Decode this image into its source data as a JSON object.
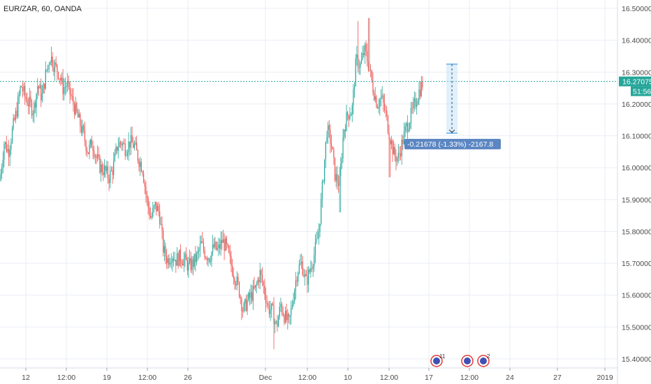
{
  "chart_data": {
    "type": "candlestick",
    "title": "EUR/ZAR, 60, OANDA",
    "ylim": [
      15.37,
      16.52
    ],
    "y_ticks": [
      "16.50000",
      "16.40000",
      "16.30000",
      "16.20000",
      "16.10000",
      "16.00000",
      "15.90000",
      "15.80000",
      "15.70000",
      "15.60000",
      "15.50000",
      "15.40000"
    ],
    "x_ticks": [
      "12",
      "12:00",
      "19",
      "12:00",
      "26",
      "Dec",
      "12:00",
      "10",
      "12:00",
      "17",
      "12:00",
      "24",
      "27",
      "2019"
    ],
    "last_price": "16.27075",
    "countdown": "51:56",
    "measure_label": "-0.21678 (-1.33%) -2167.8",
    "measure_from": 16.325,
    "measure_to": 16.108,
    "event_badges": [
      "11",
      "",
      "2"
    ],
    "path": [
      [
        0,
        15.96
      ],
      [
        6,
        16.08
      ],
      [
        12,
        16.05
      ],
      [
        18,
        16.12
      ],
      [
        24,
        16.18
      ],
      [
        30,
        16.26
      ],
      [
        36,
        16.22
      ],
      [
        42,
        16.2
      ],
      [
        48,
        16.18
      ],
      [
        54,
        16.26
      ],
      [
        60,
        16.22
      ],
      [
        66,
        16.3
      ],
      [
        72,
        16.35
      ],
      [
        78,
        16.32
      ],
      [
        84,
        16.3
      ],
      [
        90,
        16.25
      ],
      [
        96,
        16.26
      ],
      [
        102,
        16.22
      ],
      [
        108,
        16.18
      ],
      [
        114,
        16.14
      ],
      [
        120,
        16.1
      ],
      [
        126,
        16.05
      ],
      [
        132,
        16.08
      ],
      [
        138,
        16.03
      ],
      [
        144,
        16.0
      ],
      [
        150,
        15.99
      ],
      [
        156,
        15.97
      ],
      [
        162,
        16.0
      ],
      [
        168,
        16.07
      ],
      [
        174,
        16.08
      ],
      [
        180,
        16.06
      ],
      [
        186,
        16.08
      ],
      [
        192,
        16.07
      ],
      [
        198,
        16.03
      ],
      [
        204,
        16.0
      ],
      [
        210,
        15.9
      ],
      [
        216,
        15.84
      ],
      [
        222,
        15.88
      ],
      [
        228,
        15.86
      ],
      [
        234,
        15.74
      ],
      [
        240,
        15.71
      ],
      [
        246,
        15.73
      ],
      [
        252,
        15.71
      ],
      [
        258,
        15.72
      ],
      [
        264,
        15.71
      ],
      [
        270,
        15.69
      ],
      [
        276,
        15.7
      ],
      [
        282,
        15.72
      ],
      [
        288,
        15.76
      ],
      [
        294,
        15.73
      ],
      [
        300,
        15.72
      ],
      [
        306,
        15.75
      ],
      [
        312,
        15.74
      ],
      [
        318,
        15.77
      ],
      [
        324,
        15.75
      ],
      [
        330,
        15.7
      ],
      [
        336,
        15.66
      ],
      [
        342,
        15.62
      ],
      [
        348,
        15.55
      ],
      [
        354,
        15.58
      ],
      [
        360,
        15.6
      ],
      [
        366,
        15.62
      ],
      [
        372,
        15.67
      ],
      [
        378,
        15.62
      ],
      [
        384,
        15.56
      ],
      [
        390,
        15.55
      ],
      [
        396,
        15.5
      ],
      [
        402,
        15.57
      ],
      [
        408,
        15.53
      ],
      [
        414,
        15.51
      ],
      [
        420,
        15.6
      ],
      [
        426,
        15.68
      ],
      [
        432,
        15.7
      ],
      [
        438,
        15.64
      ],
      [
        444,
        15.68
      ],
      [
        450,
        15.73
      ],
      [
        456,
        15.79
      ],
      [
        462,
        15.95
      ],
      [
        468,
        16.12
      ],
      [
        474,
        16.08
      ],
      [
        480,
        15.97
      ],
      [
        486,
        15.95
      ],
      [
        492,
        16.12
      ],
      [
        498,
        16.17
      ],
      [
        504,
        16.18
      ],
      [
        510,
        16.34
      ],
      [
        516,
        16.32
      ],
      [
        522,
        16.37
      ],
      [
        528,
        16.32
      ],
      [
        534,
        16.25
      ],
      [
        540,
        16.2
      ],
      [
        546,
        16.22
      ],
      [
        552,
        16.17
      ],
      [
        558,
        16.1
      ],
      [
        564,
        16.04
      ],
      [
        570,
        16.03
      ],
      [
        576,
        16.08
      ],
      [
        582,
        16.13
      ],
      [
        588,
        16.16
      ],
      [
        594,
        16.2
      ],
      [
        600,
        16.24
      ],
      [
        606,
        16.27
      ]
    ]
  }
}
